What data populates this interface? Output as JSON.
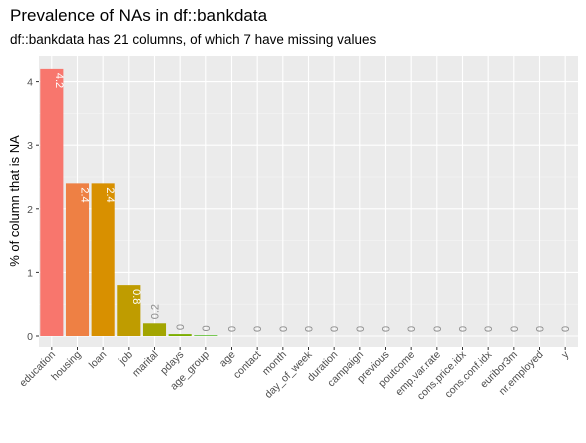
{
  "chart_data": {
    "type": "bar",
    "title": "Prevalence of NAs in df::bankdata",
    "subtitle": "df::bankdata has 21 columns, of which 7 have missing values",
    "xlabel": "",
    "ylabel": "% of column that is NA",
    "ylim": [
      0,
      4.4
    ],
    "yticks": [
      0,
      1,
      2,
      3,
      4
    ],
    "grid": true,
    "legend": "none",
    "categories": [
      "education",
      "housing",
      "loan",
      "job",
      "marital",
      "pdays",
      "age_group",
      "age",
      "contact",
      "month",
      "day_of_week",
      "duration",
      "campaign",
      "previous",
      "poutcome",
      "emp.var.rate",
      "cons.price.idx",
      "cons.conf.idx",
      "euribor3m",
      "nr.employed",
      "y"
    ],
    "values": [
      4.2,
      2.4,
      2.4,
      0.8,
      0.2,
      0.03,
      0.01,
      0,
      0,
      0,
      0,
      0,
      0,
      0,
      0,
      0,
      0,
      0,
      0,
      0,
      0
    ],
    "labels": [
      "4.2",
      "2.4",
      "2.4",
      "0.8",
      "0.2",
      "0",
      "0",
      "0",
      "0",
      "0",
      "0",
      "0",
      "0",
      "0",
      "0",
      "0",
      "0",
      "0",
      "0",
      "0",
      "0"
    ],
    "colors": [
      "#f8766d",
      "#ee8044",
      "#d89000",
      "#bf9c00",
      "#a3a500",
      "#7cae00",
      "#39b600",
      "#00bb4e",
      "#00bf7d",
      "#00c1a3",
      "#00bfc4",
      "#00bae0",
      "#00b0f6",
      "#35a2ff",
      "#9590ff",
      "#c77cff",
      "#e76bf3",
      "#fa62db",
      "#ff62bc",
      "#ff6c91",
      "#f8766d"
    ]
  }
}
